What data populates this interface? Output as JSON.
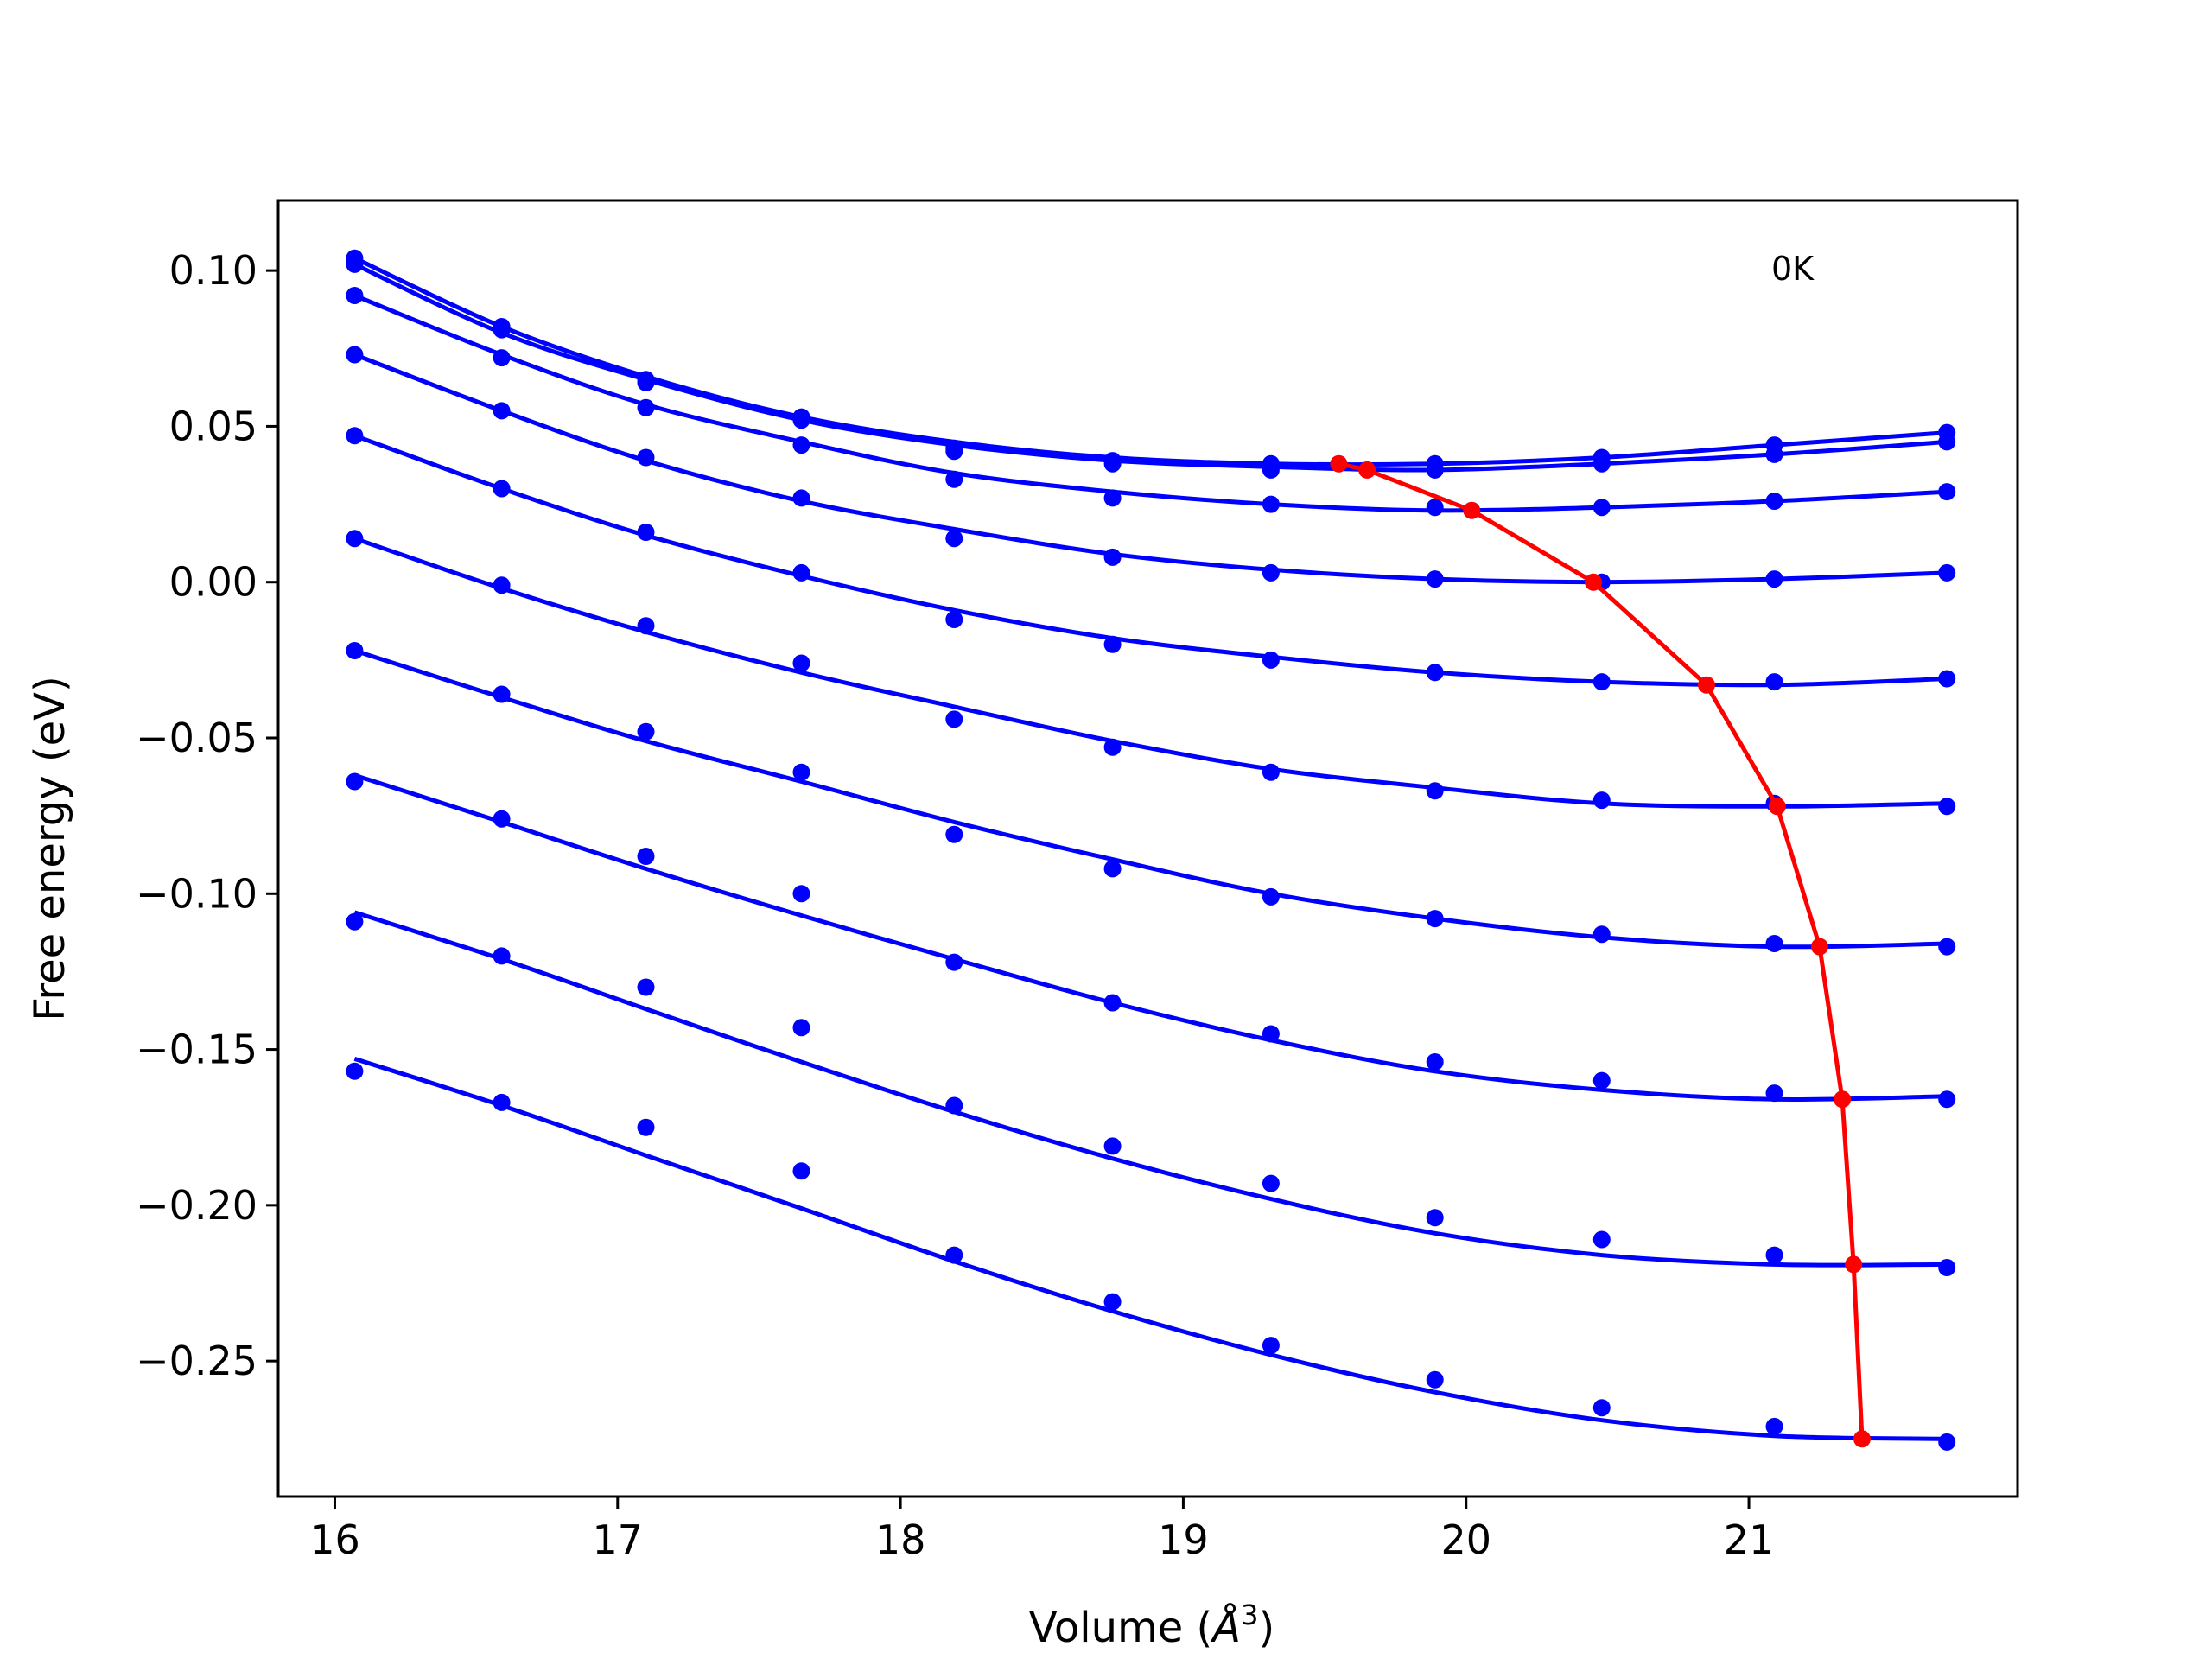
{
  "chart_data": {
    "type": "line",
    "title": "",
    "xlabel": "Volume (",
    "xlabel_unit": "Å",
    "xlabel_sup": "3",
    "xlabel_close": ")",
    "ylabel": "Free energy (eV)",
    "annotation": "0K",
    "xlim": [
      15.8,
      21.95
    ],
    "ylim": [
      -0.2935,
      0.1225
    ],
    "xticks": [
      16,
      17,
      18,
      19,
      20,
      21
    ],
    "xtick_labels": [
      "16",
      "17",
      "18",
      "19",
      "20",
      "21"
    ],
    "yticks": [
      0.1,
      0.05,
      0.0,
      -0.05,
      -0.1,
      -0.15,
      -0.2,
      -0.25
    ],
    "ytick_labels": [
      "0.10",
      "0.05",
      "0.00",
      "−0.05",
      "−0.10",
      "−0.15",
      "−0.20",
      "−0.25"
    ],
    "grid": false,
    "legend": "none",
    "colors": {
      "series": "#0000ff",
      "minima": "#ff0000"
    },
    "x": [
      16.07,
      16.59,
      17.1,
      17.65,
      18.19,
      18.75,
      19.31,
      19.89,
      20.48,
      21.09,
      21.7
    ],
    "series": [
      {
        "values": [
          0.104,
          0.082,
          0.065,
          0.053,
          0.043,
          0.039,
          0.038,
          0.038,
          0.04,
          0.044,
          0.048
        ],
        "fit": [
          [
            16.07,
            0.104
          ],
          [
            16.59,
            0.082
          ],
          [
            17.1,
            0.066
          ],
          [
            17.65,
            0.053
          ],
          [
            18.19,
            0.045
          ],
          [
            18.75,
            0.04
          ],
          [
            19.31,
            0.038
          ],
          [
            19.89,
            0.038
          ],
          [
            20.48,
            0.04
          ],
          [
            21.09,
            0.044
          ],
          [
            21.7,
            0.048
          ]
        ],
        "minimum": [
          19.55,
          0.038
        ]
      },
      {
        "values": [
          0.102,
          0.081,
          0.064,
          0.052,
          0.042,
          0.038,
          0.036,
          0.036,
          0.038,
          0.041,
          0.045
        ],
        "fit": [
          [
            16.07,
            0.102
          ],
          [
            16.59,
            0.08
          ],
          [
            17.1,
            0.065
          ],
          [
            17.65,
            0.052
          ],
          [
            18.19,
            0.044
          ],
          [
            18.75,
            0.039
          ],
          [
            19.31,
            0.037
          ],
          [
            19.89,
            0.036
          ],
          [
            20.48,
            0.038
          ],
          [
            21.09,
            0.041
          ],
          [
            21.7,
            0.045
          ]
        ],
        "minimum": [
          19.65,
          0.036
        ]
      },
      {
        "values": [
          0.092,
          0.072,
          0.056,
          0.044,
          0.033,
          0.027,
          0.025,
          0.024,
          0.024,
          0.026,
          0.029
        ],
        "fit": [
          [
            16.07,
            0.092
          ],
          [
            16.59,
            0.073
          ],
          [
            17.1,
            0.057
          ],
          [
            17.65,
            0.045
          ],
          [
            18.19,
            0.035
          ],
          [
            18.75,
            0.029
          ],
          [
            19.31,
            0.025
          ],
          [
            19.89,
            0.023
          ],
          [
            20.48,
            0.024
          ],
          [
            21.09,
            0.026
          ],
          [
            21.7,
            0.029
          ]
        ],
        "minimum": [
          20.02,
          0.023
        ]
      },
      {
        "values": [
          0.073,
          0.055,
          0.04,
          0.027,
          0.014,
          0.008,
          0.003,
          0.001,
          0.0,
          0.001,
          0.003
        ],
        "fit": [
          [
            16.07,
            0.073
          ],
          [
            16.59,
            0.055
          ],
          [
            17.1,
            0.039
          ],
          [
            17.65,
            0.026
          ],
          [
            18.19,
            0.017
          ],
          [
            18.75,
            0.009
          ],
          [
            19.31,
            0.004
          ],
          [
            19.89,
            0.001
          ],
          [
            20.48,
            0.0
          ],
          [
            21.09,
            0.001
          ],
          [
            21.7,
            0.003
          ]
        ],
        "minimum": [
          20.45,
          0.0
        ]
      },
      {
        "values": [
          0.047,
          0.03,
          0.016,
          0.003,
          -0.012,
          -0.02,
          -0.025,
          -0.029,
          -0.032,
          -0.032,
          -0.031
        ],
        "fit": [
          [
            16.07,
            0.047
          ],
          [
            16.59,
            0.03
          ],
          [
            17.1,
            0.015
          ],
          [
            17.65,
            0.002
          ],
          [
            18.19,
            -0.009
          ],
          [
            18.75,
            -0.018
          ],
          [
            19.31,
            -0.024
          ],
          [
            19.89,
            -0.029
          ],
          [
            20.48,
            -0.032
          ],
          [
            21.09,
            -0.033
          ],
          [
            21.7,
            -0.031
          ]
        ],
        "minimum": [
          20.85,
          -0.033
        ]
      },
      {
        "values": [
          0.014,
          -0.001,
          -0.014,
          -0.026,
          -0.044,
          -0.053,
          -0.061,
          -0.067,
          -0.07,
          -0.071,
          -0.072
        ],
        "fit": [
          [
            16.07,
            0.014
          ],
          [
            16.59,
            -0.002
          ],
          [
            17.1,
            -0.016
          ],
          [
            17.65,
            -0.029
          ],
          [
            18.19,
            -0.04
          ],
          [
            18.75,
            -0.051
          ],
          [
            19.31,
            -0.06
          ],
          [
            19.89,
            -0.066
          ],
          [
            20.48,
            -0.071
          ],
          [
            21.09,
            -0.072
          ],
          [
            21.7,
            -0.071
          ]
        ],
        "minimum": [
          21.1,
          -0.072
        ]
      },
      {
        "values": [
          -0.022,
          -0.036,
          -0.048,
          -0.061,
          -0.081,
          -0.092,
          -0.101,
          -0.108,
          -0.113,
          -0.116,
          -0.117
        ],
        "fit": [
          [
            16.07,
            -0.022
          ],
          [
            16.59,
            -0.037
          ],
          [
            17.1,
            -0.051
          ],
          [
            17.65,
            -0.064
          ],
          [
            18.19,
            -0.077
          ],
          [
            18.75,
            -0.089
          ],
          [
            19.31,
            -0.1
          ],
          [
            19.89,
            -0.108
          ],
          [
            20.48,
            -0.114
          ],
          [
            21.09,
            -0.117
          ],
          [
            21.7,
            -0.116
          ]
        ],
        "minimum": [
          21.25,
          -0.117
        ]
      },
      {
        "values": [
          -0.064,
          -0.076,
          -0.088,
          -0.1,
          -0.122,
          -0.135,
          -0.145,
          -0.154,
          -0.16,
          -0.164,
          -0.166
        ],
        "fit": [
          [
            16.07,
            -0.062
          ],
          [
            16.59,
            -0.077
          ],
          [
            17.1,
            -0.092
          ],
          [
            17.65,
            -0.107
          ],
          [
            18.19,
            -0.121
          ],
          [
            18.75,
            -0.135
          ],
          [
            19.31,
            -0.147
          ],
          [
            19.89,
            -0.157
          ],
          [
            20.48,
            -0.163
          ],
          [
            21.09,
            -0.166
          ],
          [
            21.7,
            -0.165
          ]
        ],
        "minimum": [
          21.33,
          -0.166
        ]
      },
      {
        "values": [
          -0.109,
          -0.12,
          -0.13,
          -0.143,
          -0.168,
          -0.181,
          -0.193,
          -0.204,
          -0.211,
          -0.216,
          -0.22
        ],
        "fit": [
          [
            16.07,
            -0.106
          ],
          [
            16.59,
            -0.121
          ],
          [
            17.1,
            -0.137
          ],
          [
            17.65,
            -0.154
          ],
          [
            18.19,
            -0.17
          ],
          [
            18.75,
            -0.185
          ],
          [
            19.31,
            -0.198
          ],
          [
            19.89,
            -0.209
          ],
          [
            20.48,
            -0.216
          ],
          [
            21.09,
            -0.219
          ],
          [
            21.7,
            -0.219
          ]
        ],
        "minimum": [
          21.37,
          -0.219
        ]
      },
      {
        "values": [
          -0.157,
          -0.167,
          -0.175,
          -0.189,
          -0.216,
          -0.231,
          -0.245,
          -0.256,
          -0.265,
          -0.271,
          -0.276
        ],
        "fit": [
          [
            16.07,
            -0.153
          ],
          [
            16.59,
            -0.168
          ],
          [
            17.1,
            -0.184
          ],
          [
            17.65,
            -0.201
          ],
          [
            18.19,
            -0.218
          ],
          [
            18.75,
            -0.234
          ],
          [
            19.31,
            -0.248
          ],
          [
            19.89,
            -0.26
          ],
          [
            20.48,
            -0.269
          ],
          [
            21.09,
            -0.274
          ],
          [
            21.7,
            -0.275
          ]
        ],
        "minimum": [
          21.4,
          -0.275
        ]
      }
    ]
  }
}
